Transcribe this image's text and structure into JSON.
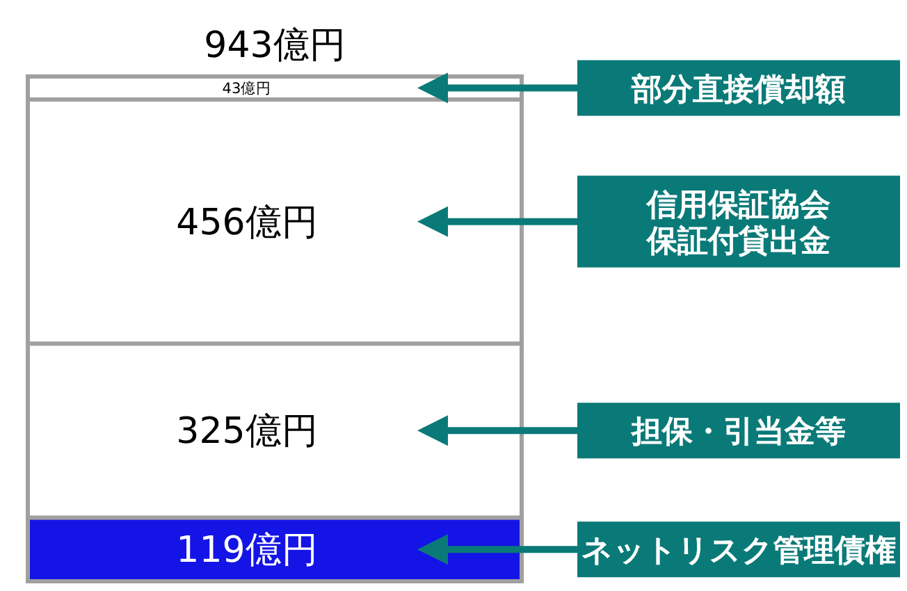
{
  "chart_data": {
    "type": "bar",
    "stacked": true,
    "categories": [
      null
    ],
    "series": [
      {
        "name": "ネットリスク管理債権",
        "color": "#1414e6",
        "values": [
          119
        ],
        "value_labels": [
          "119億円"
        ]
      },
      {
        "name": "担保・引当金等",
        "color": "#ffffff",
        "values": [
          325
        ],
        "value_labels": [
          "325億円"
        ]
      },
      {
        "name": "信用保証協会保証付貸出金",
        "color": "#ffffff",
        "values": [
          456
        ],
        "value_labels": [
          "456億円"
        ]
      },
      {
        "name": "部分直接償却額",
        "color": "#ffffff",
        "values": [
          43
        ],
        "value_labels": [
          "43億円"
        ]
      }
    ],
    "totals": [
      "943億円"
    ]
  }
}
